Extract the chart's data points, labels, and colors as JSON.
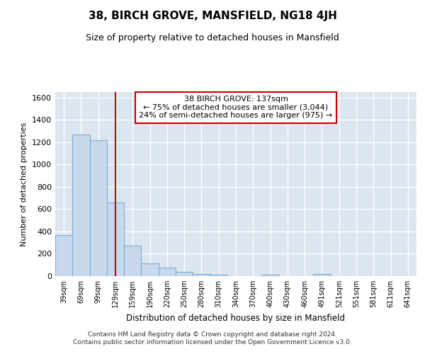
{
  "title": "38, BIRCH GROVE, MANSFIELD, NG18 4JH",
  "subtitle": "Size of property relative to detached houses in Mansfield",
  "xlabel": "Distribution of detached houses by size in Mansfield",
  "ylabel": "Number of detached properties",
  "categories": [
    "39sqm",
    "69sqm",
    "99sqm",
    "129sqm",
    "159sqm",
    "190sqm",
    "220sqm",
    "250sqm",
    "280sqm",
    "310sqm",
    "340sqm",
    "370sqm",
    "400sqm",
    "430sqm",
    "460sqm",
    "491sqm",
    "521sqm",
    "551sqm",
    "581sqm",
    "611sqm",
    "641sqm"
  ],
  "values": [
    370,
    1270,
    1220,
    660,
    270,
    115,
    75,
    35,
    20,
    15,
    0,
    0,
    15,
    0,
    0,
    20,
    0,
    0,
    0,
    0,
    0
  ],
  "bar_color": "#c8d9ed",
  "bar_edge_color": "#7aaed4",
  "vline_color": "#cc0000",
  "vline_pos": 3.5,
  "annotation_text": "38 BIRCH GROVE: 137sqm\n← 75% of detached houses are smaller (3,044)\n24% of semi-detached houses are larger (975) →",
  "annotation_box_facecolor": "#ffffff",
  "annotation_box_edgecolor": "#cc0000",
  "ylim": [
    0,
    1650
  ],
  "yticks": [
    0,
    200,
    400,
    600,
    800,
    1000,
    1200,
    1400,
    1600
  ],
  "background_color": "#dce6f0",
  "footer_line1": "Contains HM Land Registry data © Crown copyright and database right 2024.",
  "footer_line2": "Contains public sector information licensed under the Open Government Licence v3.0."
}
